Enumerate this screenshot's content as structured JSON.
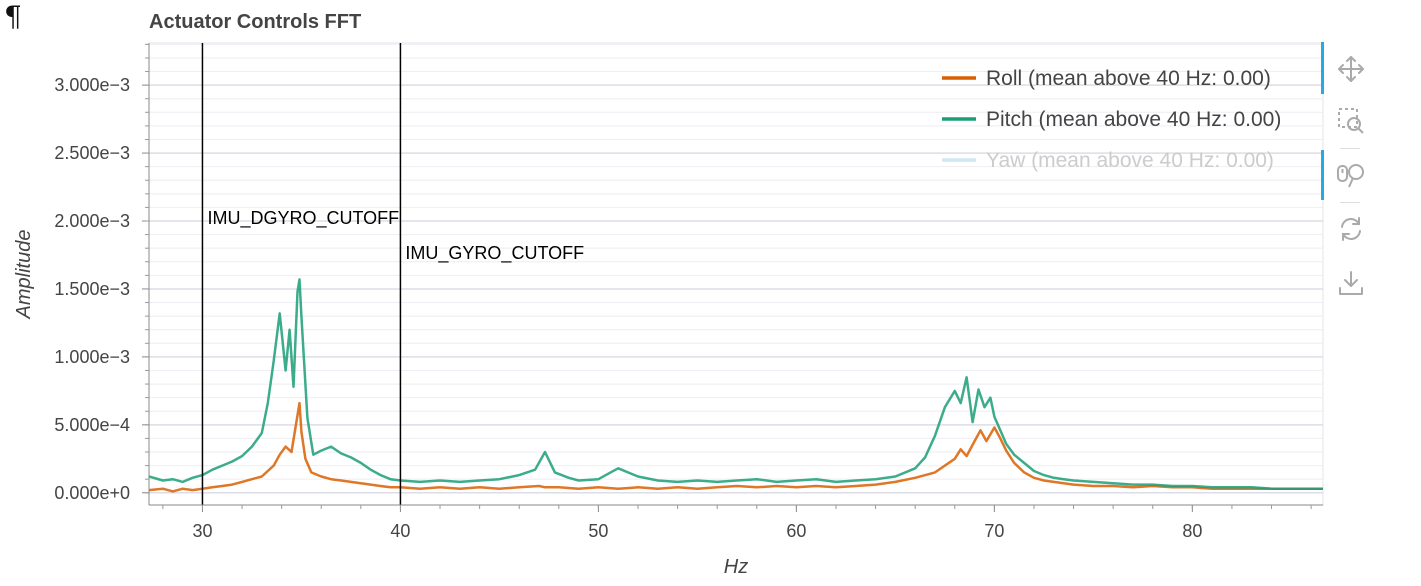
{
  "page": {
    "marker": "¶"
  },
  "chart_data": {
    "type": "line",
    "title": "Actuator Controls FFT",
    "xlabel": "Hz",
    "ylabel": "Amplitude",
    "xlim": [
      27.3,
      86.6
    ],
    "ylim": [
      -9e-05,
      0.00331
    ],
    "xticks": [
      30,
      40,
      50,
      60,
      70,
      80
    ],
    "xtick_labels": [
      "30",
      "40",
      "50",
      "60",
      "70",
      "80"
    ],
    "yticks": [
      0,
      0.0005,
      0.001,
      0.0015,
      0.002,
      0.0025,
      0.003
    ],
    "ytick_labels": [
      "0.000e+0",
      "5.000e−4",
      "1.000e−3",
      "1.500e−3",
      "2.000e−3",
      "2.500e−3",
      "3.000e−3"
    ],
    "grid": true,
    "legend_position": "top-right",
    "vlines": [
      {
        "x": 30,
        "label": "IMU_DGYRO_CUTOFF"
      },
      {
        "x": 40,
        "label": "IMU_GYRO_CUTOFF"
      }
    ],
    "series": [
      {
        "name": "Roll (mean above 40 Hz: 0.00)",
        "color": "#d95f02",
        "visible": true,
        "x": [
          27.3,
          28,
          28.5,
          29,
          29.5,
          30,
          30.5,
          31,
          31.5,
          32,
          32.5,
          33,
          33.3,
          33.6,
          33.9,
          34.2,
          34.5,
          34.7,
          34.9,
          35,
          35.2,
          35.5,
          36,
          36.5,
          37,
          37.5,
          38,
          38.5,
          39,
          39.5,
          40,
          41,
          42,
          43,
          44,
          45,
          46,
          47,
          47.3,
          48,
          49,
          50,
          51,
          52,
          53,
          54,
          55,
          56,
          57,
          58,
          59,
          60,
          61,
          62,
          63,
          64,
          65,
          66,
          67,
          68,
          68.3,
          68.6,
          69,
          69.3,
          69.6,
          70,
          70.3,
          70.6,
          71,
          71.5,
          72,
          72.5,
          73,
          74,
          75,
          76,
          77,
          78,
          79,
          80,
          81,
          82,
          83,
          84,
          85,
          86.6
        ],
        "y": [
          2e-05,
          3e-05,
          1e-05,
          3e-05,
          2e-05,
          3e-05,
          4e-05,
          5e-05,
          6e-05,
          8e-05,
          0.0001,
          0.00012,
          0.00016,
          0.0002,
          0.00028,
          0.00034,
          0.0003,
          0.00048,
          0.00066,
          0.00045,
          0.00025,
          0.00015,
          0.00012,
          0.0001,
          9e-05,
          8e-05,
          7e-05,
          6e-05,
          5e-05,
          4e-05,
          4e-05,
          3e-05,
          4e-05,
          3e-05,
          4e-05,
          3e-05,
          4e-05,
          5e-05,
          4e-05,
          4e-05,
          3e-05,
          4e-05,
          3e-05,
          4e-05,
          3e-05,
          4e-05,
          3e-05,
          4e-05,
          5e-05,
          4e-05,
          5e-05,
          4e-05,
          5e-05,
          4e-05,
          5e-05,
          6e-05,
          8e-05,
          0.00011,
          0.00015,
          0.00025,
          0.00032,
          0.00027,
          0.00038,
          0.00046,
          0.00038,
          0.00048,
          0.0004,
          0.00031,
          0.00022,
          0.00015,
          0.00011,
          9e-05,
          8e-05,
          6e-05,
          5e-05,
          5e-05,
          4e-05,
          5e-05,
          4e-05,
          4e-05,
          3e-05,
          3e-05,
          3e-05,
          3e-05,
          3e-05,
          3e-05
        ]
      },
      {
        "name": "Pitch (mean above 40 Hz: 0.00)",
        "color": "#1b9e77",
        "visible": true,
        "x": [
          27.3,
          28,
          28.5,
          29,
          29.5,
          30,
          30.5,
          31,
          31.5,
          32,
          32.5,
          33,
          33.3,
          33.6,
          33.9,
          34.2,
          34.4,
          34.6,
          34.8,
          34.9,
          35,
          35.1,
          35.3,
          35.6,
          36,
          36.5,
          37,
          37.5,
          38,
          38.5,
          39,
          39.5,
          40,
          41,
          42,
          43,
          44,
          45,
          46,
          46.8,
          47.3,
          47.8,
          48.5,
          49,
          50,
          50.5,
          51,
          52,
          53,
          54,
          55,
          56,
          57,
          58,
          59,
          60,
          61,
          62,
          63,
          64,
          65,
          66,
          66.5,
          67,
          67.5,
          68,
          68.3,
          68.6,
          68.9,
          69.2,
          69.5,
          69.8,
          70,
          70.3,
          70.6,
          71,
          71.5,
          72,
          72.5,
          73,
          73.5,
          74,
          75,
          76,
          77,
          78,
          79,
          80,
          81,
          82,
          83,
          84,
          85,
          86.6
        ],
        "y": [
          0.00012,
          9e-05,
          0.0001,
          8e-05,
          0.00011,
          0.00013,
          0.00017,
          0.0002,
          0.00023,
          0.00027,
          0.00034,
          0.00044,
          0.00066,
          0.00097,
          0.00132,
          0.0009,
          0.0012,
          0.00078,
          0.00148,
          0.00157,
          0.0013,
          0.00105,
          0.00055,
          0.00028,
          0.00031,
          0.00034,
          0.00029,
          0.00026,
          0.00022,
          0.00017,
          0.00013,
          0.0001,
          9e-05,
          8e-05,
          9e-05,
          8e-05,
          9e-05,
          0.0001,
          0.00013,
          0.00017,
          0.0003,
          0.00015,
          0.00011,
          9e-05,
          0.0001,
          0.00014,
          0.00018,
          0.00012,
          9e-05,
          8e-05,
          9e-05,
          8e-05,
          9e-05,
          0.0001,
          8e-05,
          9e-05,
          0.0001,
          8e-05,
          9e-05,
          0.0001,
          0.00012,
          0.00018,
          0.00026,
          0.00042,
          0.00063,
          0.00075,
          0.00066,
          0.00085,
          0.00052,
          0.00076,
          0.00063,
          0.0007,
          0.00056,
          0.00046,
          0.00036,
          0.00028,
          0.00022,
          0.00016,
          0.00013,
          0.00011,
          0.0001,
          9e-05,
          8e-05,
          7e-05,
          6e-05,
          6e-05,
          5e-05,
          5e-05,
          4e-05,
          4e-05,
          4e-05,
          3e-05,
          3e-05,
          3e-05
        ]
      },
      {
        "name": "Yaw (mean above 40 Hz: 0.00)",
        "color": "#7570b3",
        "visible": false,
        "x": [],
        "y": []
      }
    ]
  },
  "toolbar": {
    "tools": [
      {
        "name": "pan-icon",
        "active": true
      },
      {
        "name": "box-zoom-icon",
        "active": false
      },
      {
        "name": "wheel-zoom-icon",
        "active": true
      },
      {
        "name": "reset-icon",
        "active": false
      },
      {
        "name": "save-icon",
        "active": false
      }
    ]
  }
}
